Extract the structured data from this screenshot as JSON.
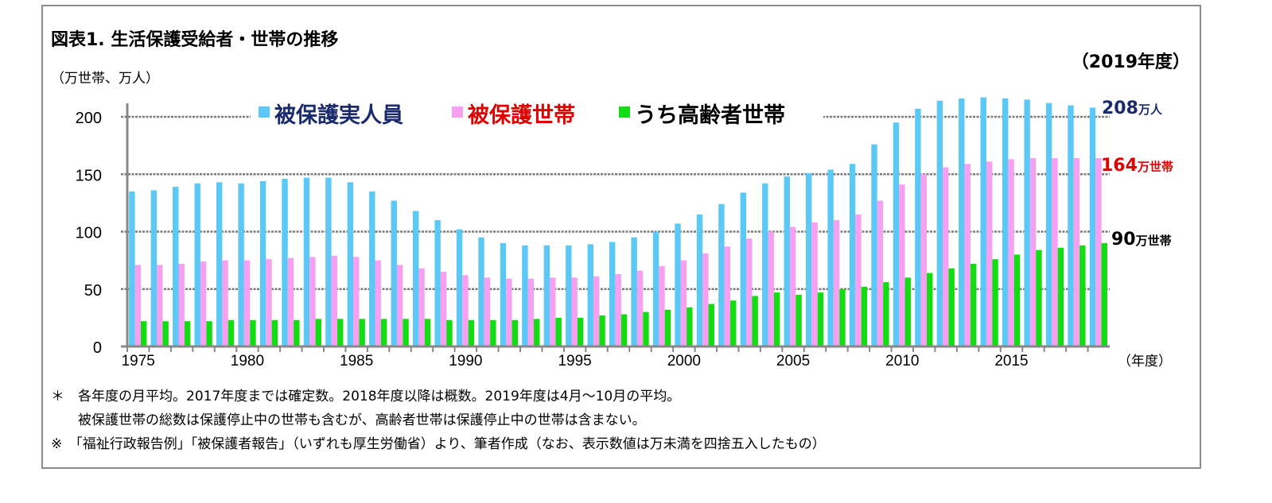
{
  "title": "図表1. 生活保護受給者・世帯の推移",
  "unit_label": "（万世帯、万人）",
  "year_tag": "（2019年度）",
  "chart_data": {
    "type": "bar",
    "title": "図表1. 生活保護受給者・世帯の推移",
    "ylabel": "（万世帯、万人）",
    "xlabel": "（年度）",
    "ylim": [
      0,
      200
    ],
    "yticks": [
      0,
      50,
      100,
      150,
      200
    ],
    "grid": true,
    "legend": "top-center",
    "categories": [
      1975,
      1976,
      1977,
      1978,
      1979,
      1980,
      1981,
      1982,
      1983,
      1984,
      1985,
      1986,
      1987,
      1988,
      1989,
      1990,
      1991,
      1992,
      1993,
      1994,
      1995,
      1996,
      1997,
      1998,
      1999,
      2000,
      2001,
      2002,
      2003,
      2004,
      2005,
      2006,
      2007,
      2008,
      2009,
      2010,
      2011,
      2012,
      2013,
      2014,
      2015,
      2016,
      2017,
      2018,
      2019
    ],
    "xtick_labels": [
      "1975",
      "1980",
      "1985",
      "1990",
      "1995",
      "2000",
      "2005",
      "2010",
      "2015"
    ],
    "series": [
      {
        "name": "被保護実人員",
        "color": "#5bc8f5",
        "values": [
          135,
          136,
          139,
          142,
          143,
          142,
          144,
          146,
          147,
          147,
          143,
          135,
          127,
          118,
          110,
          102,
          95,
          90,
          88,
          88,
          88,
          89,
          91,
          95,
          100,
          107,
          115,
          124,
          134,
          142,
          148,
          151,
          154,
          159,
          176,
          195,
          207,
          214,
          216,
          217,
          216,
          215,
          212,
          210,
          208
        ]
      },
      {
        "name": "被保護世帯",
        "color": "#f5a0f0",
        "values": [
          71,
          71,
          72,
          74,
          75,
          75,
          76,
          77,
          78,
          79,
          78,
          75,
          71,
          68,
          65,
          62,
          60,
          59,
          59,
          60,
          60,
          61,
          63,
          66,
          70,
          75,
          81,
          87,
          94,
          100,
          104,
          108,
          110,
          115,
          127,
          141,
          150,
          156,
          159,
          161,
          163,
          164,
          164,
          164,
          164
        ]
      },
      {
        "name": "うち高齢者世帯",
        "color": "#12dd12",
        "values": [
          22,
          22,
          22,
          22,
          23,
          23,
          23,
          23,
          24,
          24,
          24,
          24,
          24,
          24,
          23,
          23,
          23,
          23,
          24,
          25,
          25,
          27,
          28,
          30,
          32,
          34,
          37,
          40,
          44,
          47,
          45,
          47,
          50,
          52,
          56,
          60,
          64,
          68,
          72,
          76,
          80,
          84,
          86,
          88,
          90
        ]
      }
    ],
    "annotations": [
      {
        "text": "208",
        "unit": "万人",
        "color": "#1a2a6c"
      },
      {
        "text": "164",
        "unit": "万世帯",
        "color": "#e00000"
      },
      {
        "text": "90",
        "unit": "万世帯",
        "color": "#000000"
      }
    ],
    "legend_text_colors": [
      "#1a2a6c",
      "#e00000",
      "#000000"
    ]
  },
  "notes": [
    "＊　各年度の月平均。2017年度までは確定数。2018年度以降は概数。2019年度は4月～10月の平均。",
    "　　被保護世帯の総数は保護停止中の世帯も含むが、高齢者世帯は保護停止中の世帯は含まない。",
    "※　「福祉行政報告例」「被保護者報告」（いずれも厚生労働省）より、筆者作成（なお、表示数値は万未満を四捨五入したもの）"
  ]
}
